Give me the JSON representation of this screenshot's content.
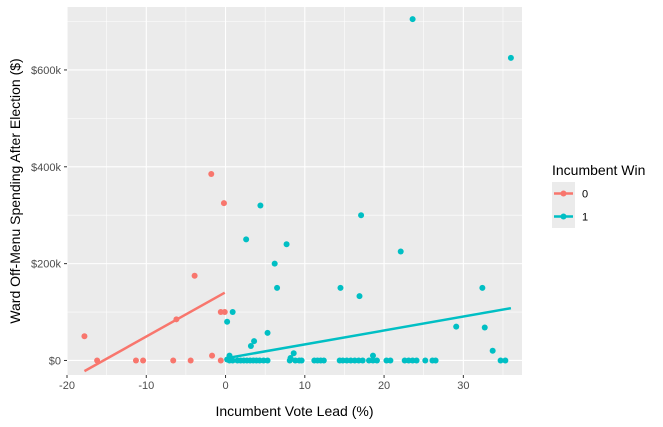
{
  "chart_data": {
    "type": "scatter",
    "title": "",
    "xlabel": "Incumbent Vote Lead (%)",
    "ylabel": "Ward Off-Menu Spending After Election ($)",
    "xlim": [
      -20.0,
      37.4
    ],
    "ylim": [
      -30000,
      730000
    ],
    "x_ticks": [
      -20,
      -10,
      0,
      10,
      20,
      30
    ],
    "x_tick_labels": [
      "-20",
      "-10",
      "0",
      "10",
      "20",
      "30"
    ],
    "y_ticks": [
      0,
      200000,
      400000,
      600000
    ],
    "y_tick_labels": [
      "$0",
      "$200k",
      "$400k",
      "$600k"
    ],
    "grid": true,
    "legend": {
      "title": "Incumbent Win",
      "position": "right"
    },
    "series": [
      {
        "name": "0",
        "color": "#F8766D",
        "points": [
          [
            -17.8,
            50000
          ],
          [
            -16.2,
            0
          ],
          [
            -11.3,
            0
          ],
          [
            -10.4,
            0
          ],
          [
            -6.6,
            0
          ],
          [
            -6.2,
            85000
          ],
          [
            -4.4,
            0
          ],
          [
            -3.9,
            175000
          ],
          [
            -1.8,
            385000
          ],
          [
            -1.7,
            10000
          ],
          [
            -0.6,
            0
          ],
          [
            -0.6,
            100000
          ],
          [
            -0.2,
            325000
          ],
          [
            -0.1,
            100000
          ]
        ],
        "fit": [
          [
            -17.8,
            -22000
          ],
          [
            -0.1,
            140000
          ]
        ]
      },
      {
        "name": "1",
        "color": "#00BFC4",
        "points": [
          [
            23.6,
            705000
          ],
          [
            36.0,
            625000
          ],
          [
            4.4,
            320000
          ],
          [
            17.1,
            300000
          ],
          [
            2.6,
            250000
          ],
          [
            7.7,
            240000
          ],
          [
            22.1,
            225000
          ],
          [
            6.2,
            200000
          ],
          [
            6.5,
            150000
          ],
          [
            14.5,
            150000
          ],
          [
            32.4,
            150000
          ],
          [
            16.9,
            133000
          ],
          [
            0.9,
            100000
          ],
          [
            0.2,
            80000
          ],
          [
            29.1,
            70000
          ],
          [
            32.7,
            68000
          ],
          [
            5.3,
            57000
          ],
          [
            3.6,
            40000
          ],
          [
            3.2,
            30000
          ],
          [
            33.7,
            20000
          ],
          [
            8.6,
            15000
          ],
          [
            0.5,
            10000
          ],
          [
            18.6,
            10000
          ],
          [
            8.2,
            5000
          ],
          [
            0.2,
            2000
          ],
          [
            0.5,
            0
          ],
          [
            0.9,
            0
          ],
          [
            1.5,
            0
          ],
          [
            1.9,
            0
          ],
          [
            2.3,
            0
          ],
          [
            2.7,
            0
          ],
          [
            3.1,
            0
          ],
          [
            3.5,
            0
          ],
          [
            3.9,
            0
          ],
          [
            4.3,
            0
          ],
          [
            4.8,
            0
          ],
          [
            5.3,
            0
          ],
          [
            8.1,
            0
          ],
          [
            8.8,
            0
          ],
          [
            9.3,
            0
          ],
          [
            9.6,
            0
          ],
          [
            11.2,
            0
          ],
          [
            11.6,
            0
          ],
          [
            12.0,
            0
          ],
          [
            12.4,
            0
          ],
          [
            14.4,
            0
          ],
          [
            14.8,
            0
          ],
          [
            15.3,
            0
          ],
          [
            15.8,
            0
          ],
          [
            16.3,
            0
          ],
          [
            16.8,
            0
          ],
          [
            17.3,
            0
          ],
          [
            18.1,
            0
          ],
          [
            18.6,
            0
          ],
          [
            19.1,
            0
          ],
          [
            20.3,
            0
          ],
          [
            20.8,
            0
          ],
          [
            22.6,
            0
          ],
          [
            23.1,
            0
          ],
          [
            23.6,
            0
          ],
          [
            24.1,
            0
          ],
          [
            25.2,
            0
          ],
          [
            26.1,
            0
          ],
          [
            26.5,
            0
          ],
          [
            34.7,
            0
          ],
          [
            35.3,
            0
          ]
        ],
        "fit": [
          [
            0.2,
            5000
          ],
          [
            36.0,
            108000
          ]
        ]
      }
    ]
  }
}
